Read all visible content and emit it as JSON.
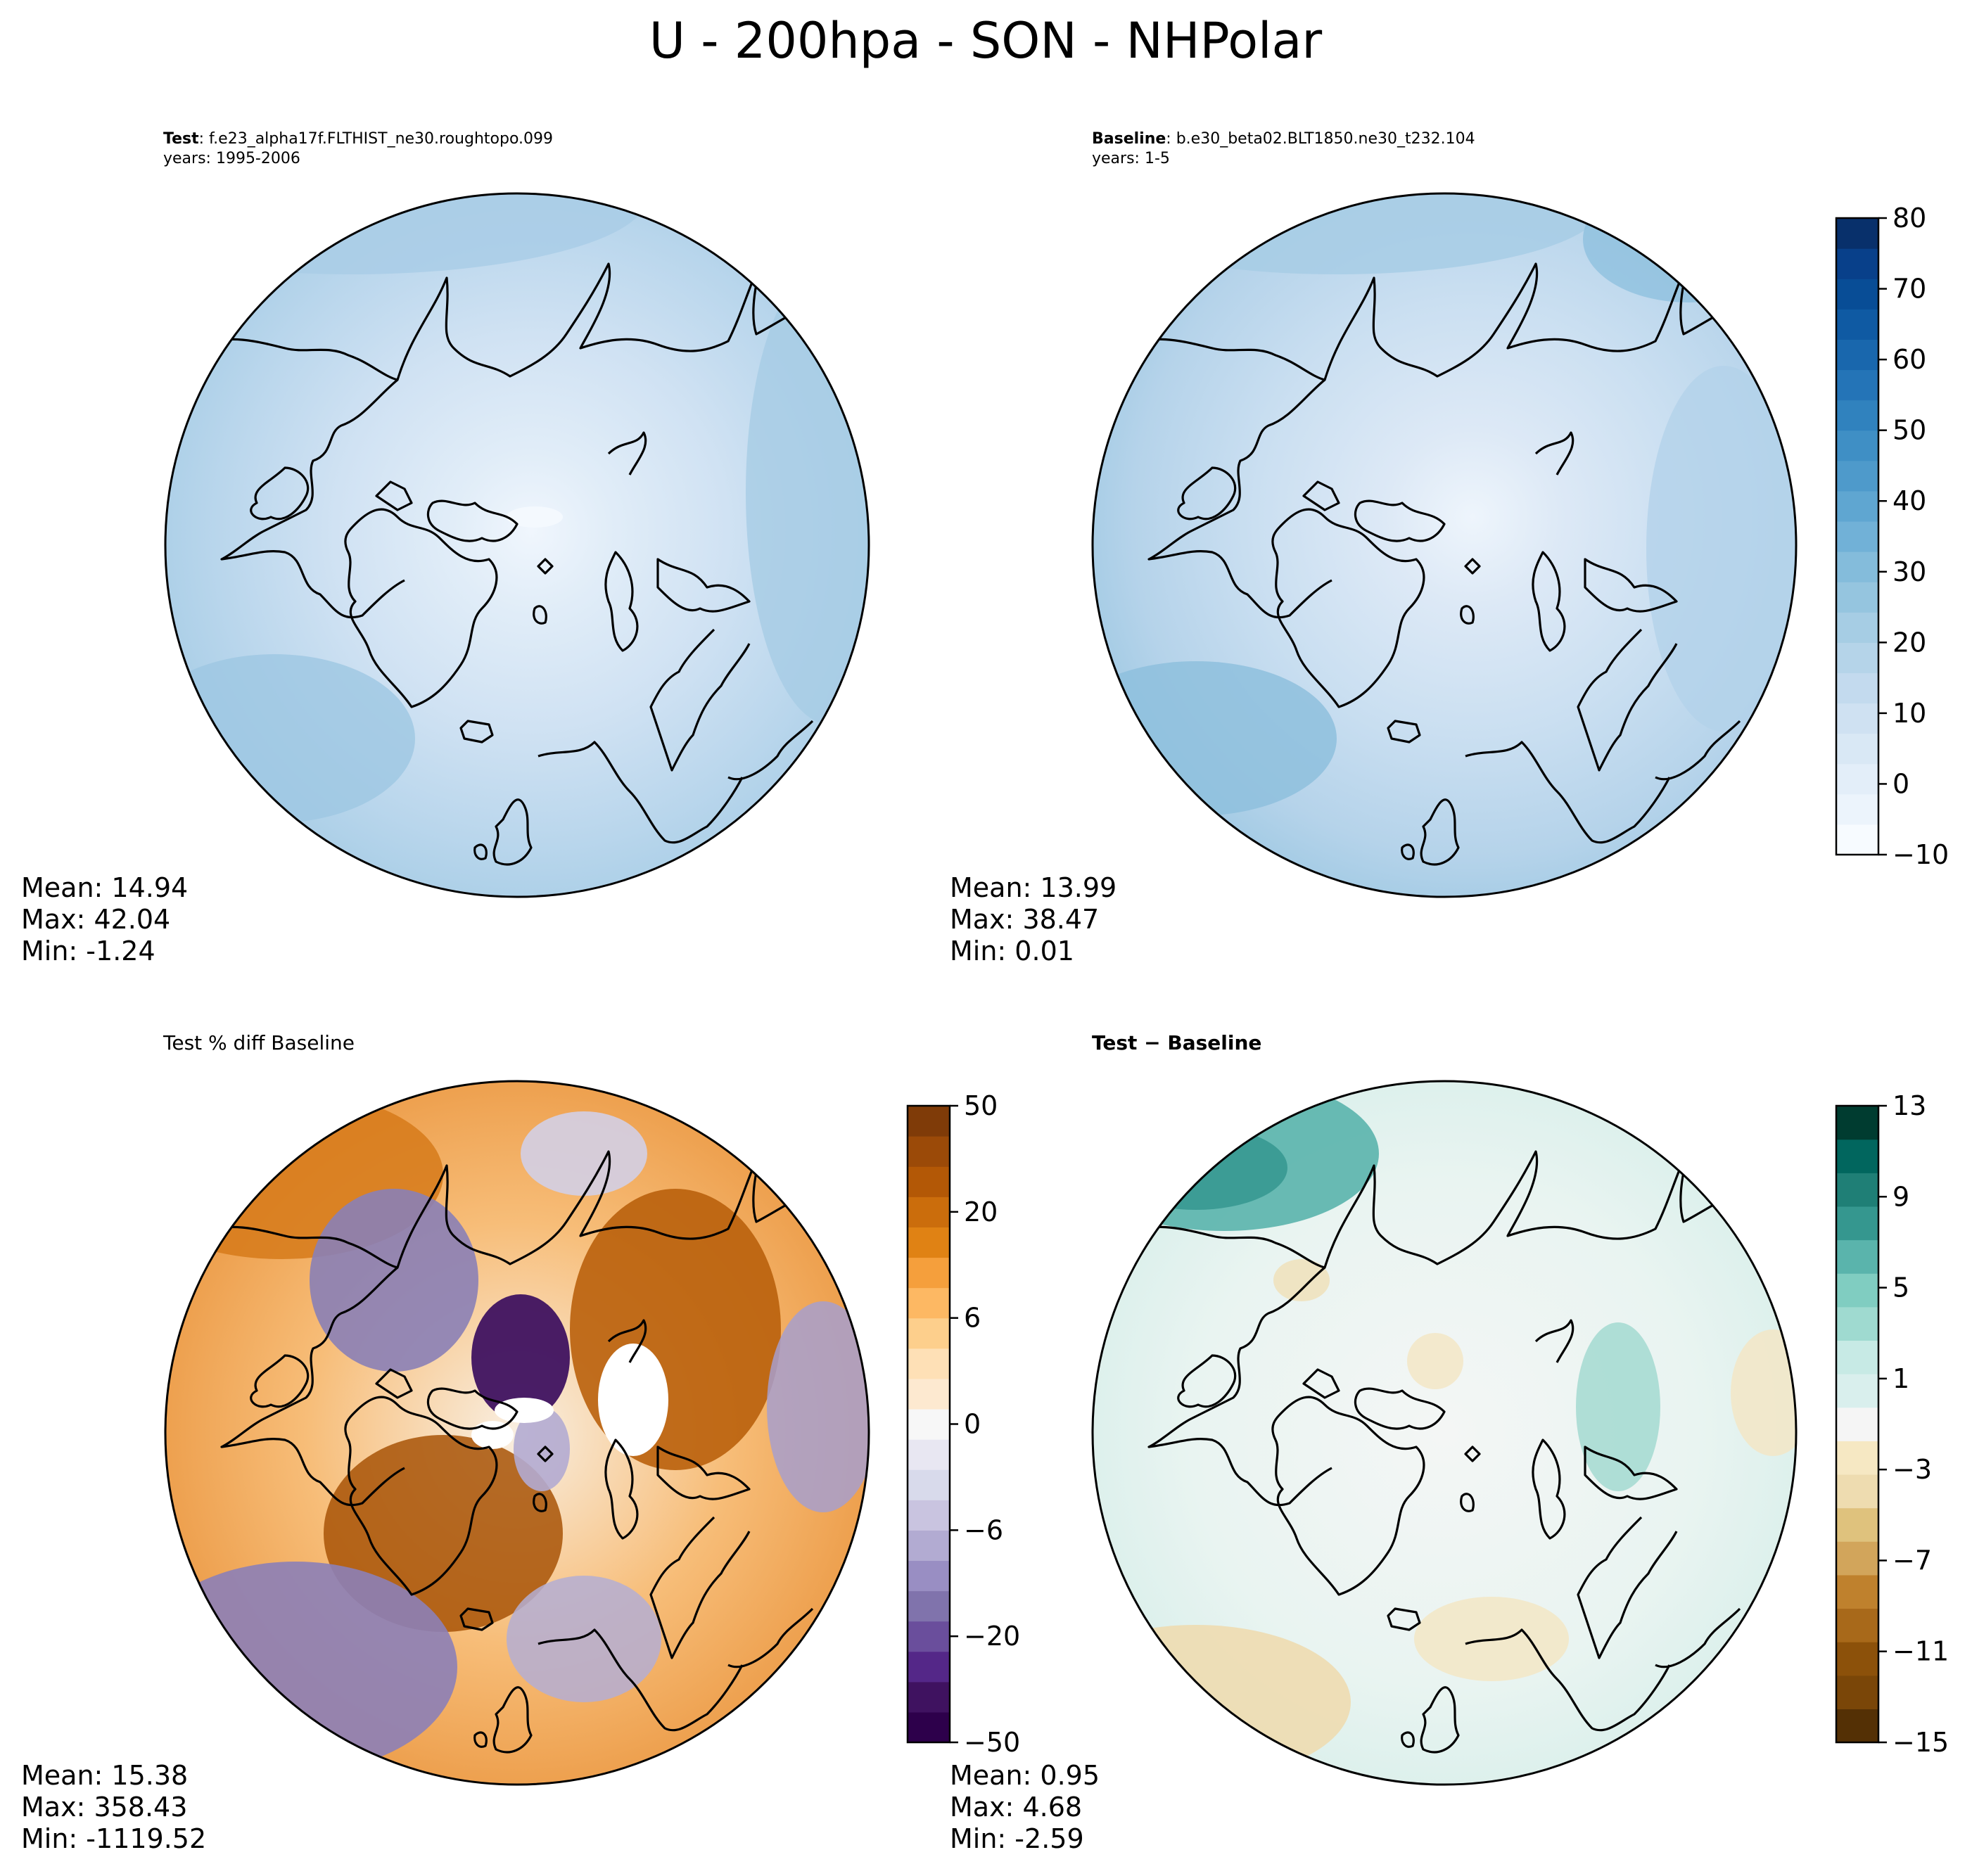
{
  "title": "U - 200hpa - SON - NHPolar",
  "panels": [
    {
      "id": "test",
      "label_bold": "Test",
      "label_rest": ": f.e23_alpha17f.FLTHIST_ne30.roughtopo.099",
      "line2": "years: 1995-2006",
      "stats": {
        "mean": "Mean: 14.94",
        "max": "Max: 42.04",
        "min": "Min: -1.24"
      },
      "colormap": "blues"
    },
    {
      "id": "baseline",
      "label_bold": "Baseline",
      "label_rest": ": b.e30_beta02.BLT1850.ne30_t232.104",
      "line2": "years: 1-5",
      "stats": {
        "mean": "Mean: 13.99",
        "max": "Max: 38.47",
        "min": "Min:  0.01"
      },
      "colormap": "blues"
    },
    {
      "id": "pctdiff",
      "label_bold": "",
      "label_rest": "Test % diff Baseline",
      "line2": "",
      "stats": {
        "mean": "Mean: 15.38",
        "max": "Max: 358.43",
        "min": "Min: -1119.52"
      },
      "colormap": "PuOr"
    },
    {
      "id": "diff",
      "label_bold": "Test − Baseline",
      "label_rest": "",
      "line2": "",
      "stats": {
        "mean": "Mean:  0.95",
        "max": "Max:  4.68",
        "min": "Min: -2.59"
      },
      "colormap": "BrBG"
    }
  ],
  "colorbars": [
    {
      "id": "cb-main",
      "ticks": [
        "−10",
        "0",
        "10",
        "20",
        "30",
        "40",
        "50",
        "60",
        "70",
        "80"
      ],
      "colors": [
        "#f7fbff",
        "#ecf4fc",
        "#e3eef9",
        "#d9e8f5",
        "#cfe1f2",
        "#c3daee",
        "#b5d4e9",
        "#a6cde4",
        "#95c5df",
        "#84bcdb",
        "#71b1d7",
        "#5fa6d1",
        "#4e9acb",
        "#3f8fc5",
        "#3082be",
        "#2474b7",
        "#1967ad",
        "#0f5aa3",
        "#084d96",
        "#08408a",
        "#08306b"
      ]
    },
    {
      "id": "cb-pct",
      "ticks": [
        "−50",
        "−20",
        "−6",
        "0",
        "6",
        "20",
        "50"
      ],
      "colors": [
        "#2d004b",
        "#3f1260",
        "#542788",
        "#6a4e9c",
        "#8073ac",
        "#998ec3",
        "#b2abd2",
        "#c9c4e0",
        "#d8daeb",
        "#e8e7f2",
        "#f7f7f7",
        "#fde9d0",
        "#fee0b6",
        "#fdcf8c",
        "#fdb863",
        "#f59f3c",
        "#e08214",
        "#cb6d0c",
        "#b35806",
        "#9b4a08",
        "#7f3b08"
      ]
    },
    {
      "id": "cb-diff",
      "ticks": [
        "−15",
        "−11",
        "−7",
        "−3",
        "1",
        "5",
        "9",
        "13"
      ],
      "colors": [
        "#543005",
        "#7a4608",
        "#8c510a",
        "#a8691a",
        "#bf812d",
        "#d2a55b",
        "#dfc27d",
        "#eedcb0",
        "#f6e8c3",
        "#f5f5f5",
        "#d9efed",
        "#c7eae5",
        "#9fdad0",
        "#80cdc1",
        "#5ab4ac",
        "#35978f",
        "#1f7f76",
        "#01665e",
        "#003c30"
      ]
    }
  ]
}
